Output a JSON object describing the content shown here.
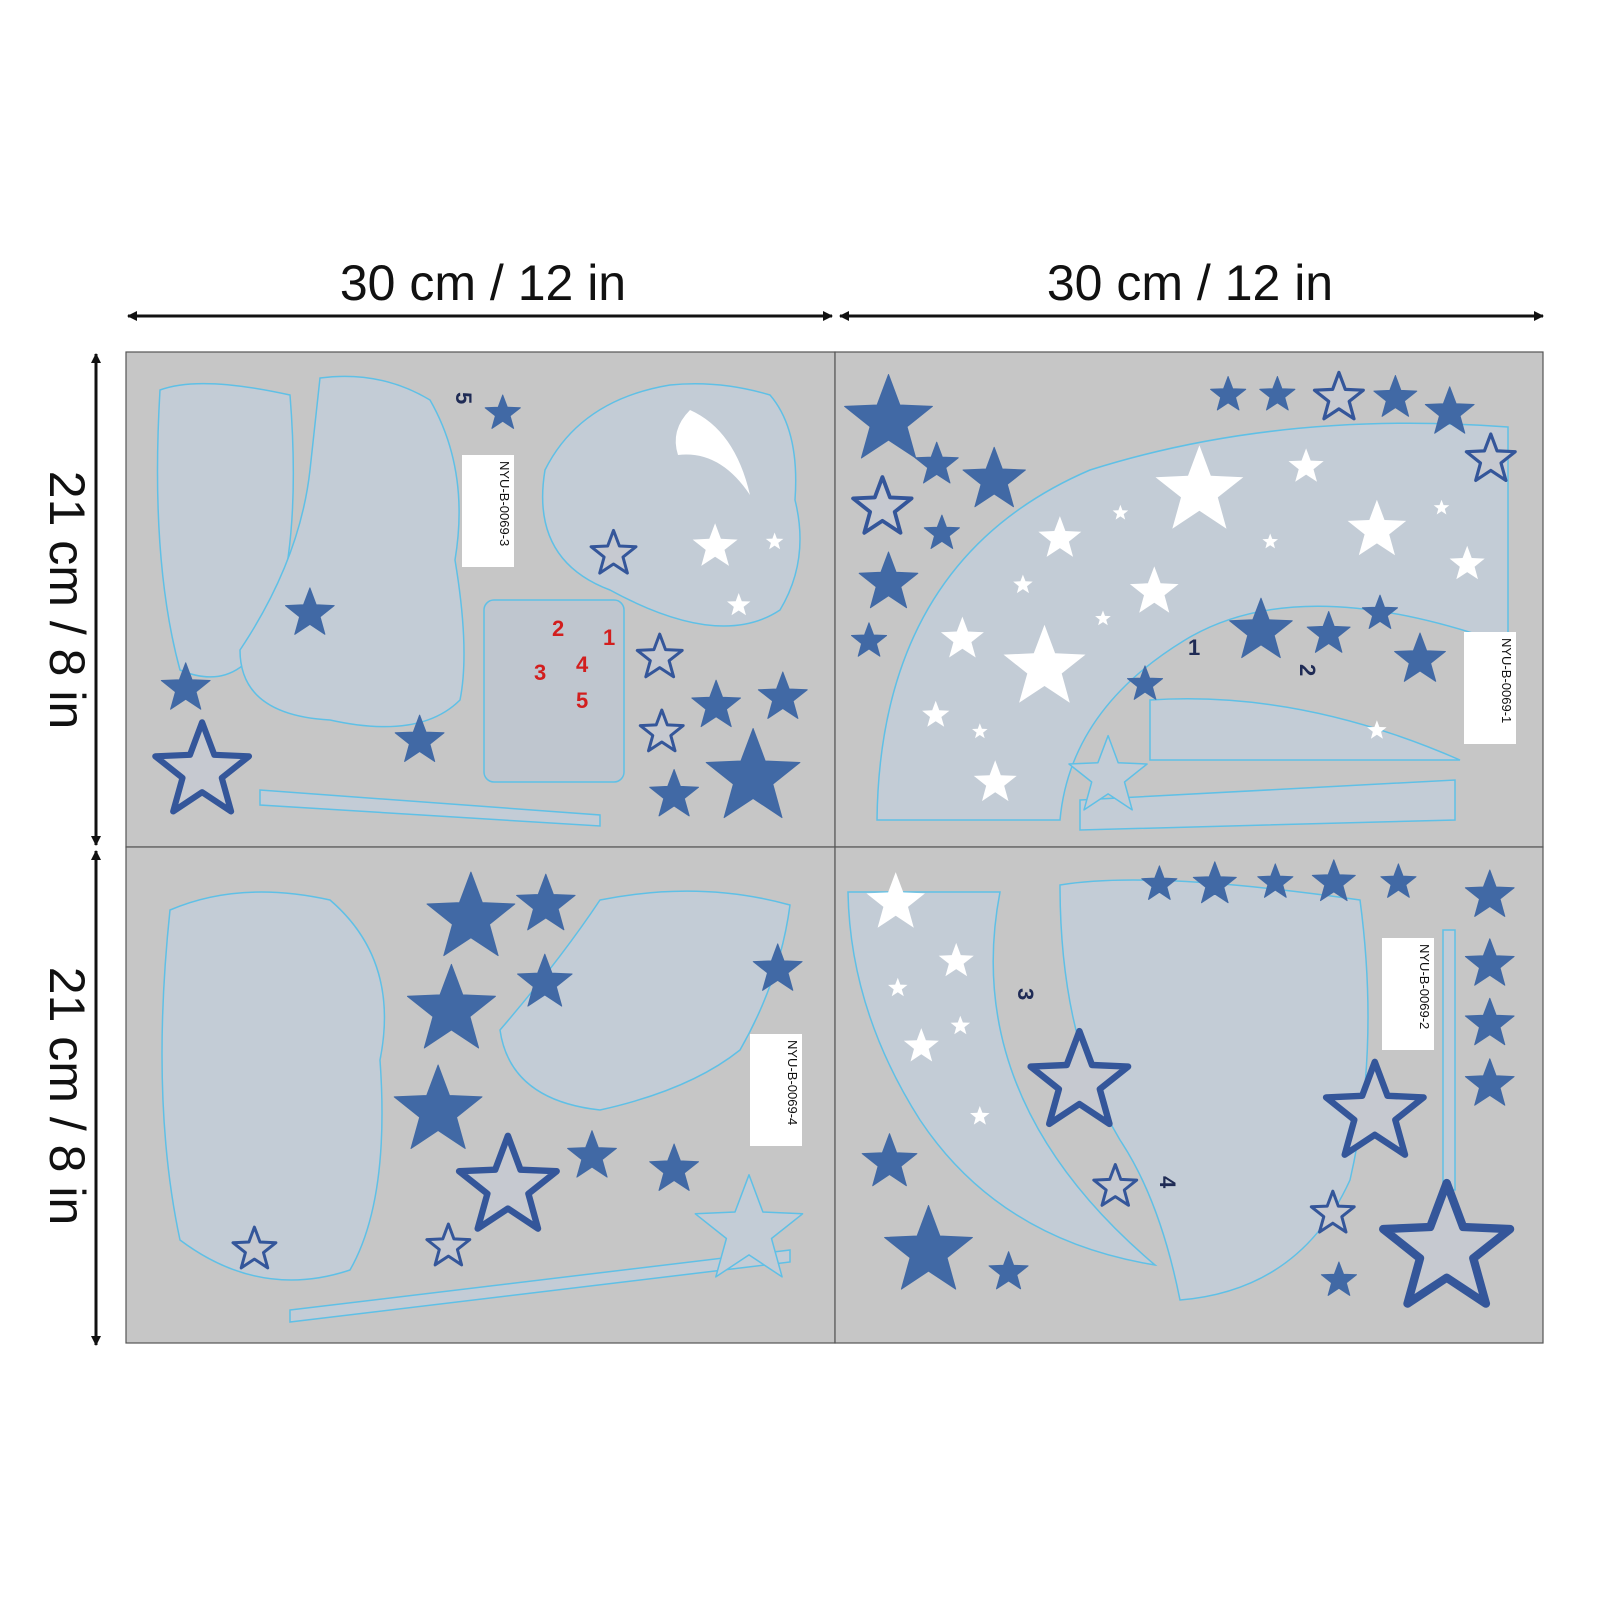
{
  "dimensions": {
    "width_left": "30 cm / 12 in",
    "width_right": "30 cm / 12 in",
    "height_upper": "21 cm / 8 in",
    "height_lower": "21 cm / 8 in"
  },
  "sheets": [
    {
      "code": "NYU-B-0069-3"
    },
    {
      "code": "NYU-B-0069-1"
    },
    {
      "code": "NYU-B-0069-2"
    },
    {
      "code": "NYU-B-0069-4"
    }
  ],
  "step_labels": [
    "5",
    "1",
    "2",
    "3",
    "4"
  ],
  "guide_numbers": [
    "1",
    "2",
    "4",
    "5",
    "3"
  ]
}
